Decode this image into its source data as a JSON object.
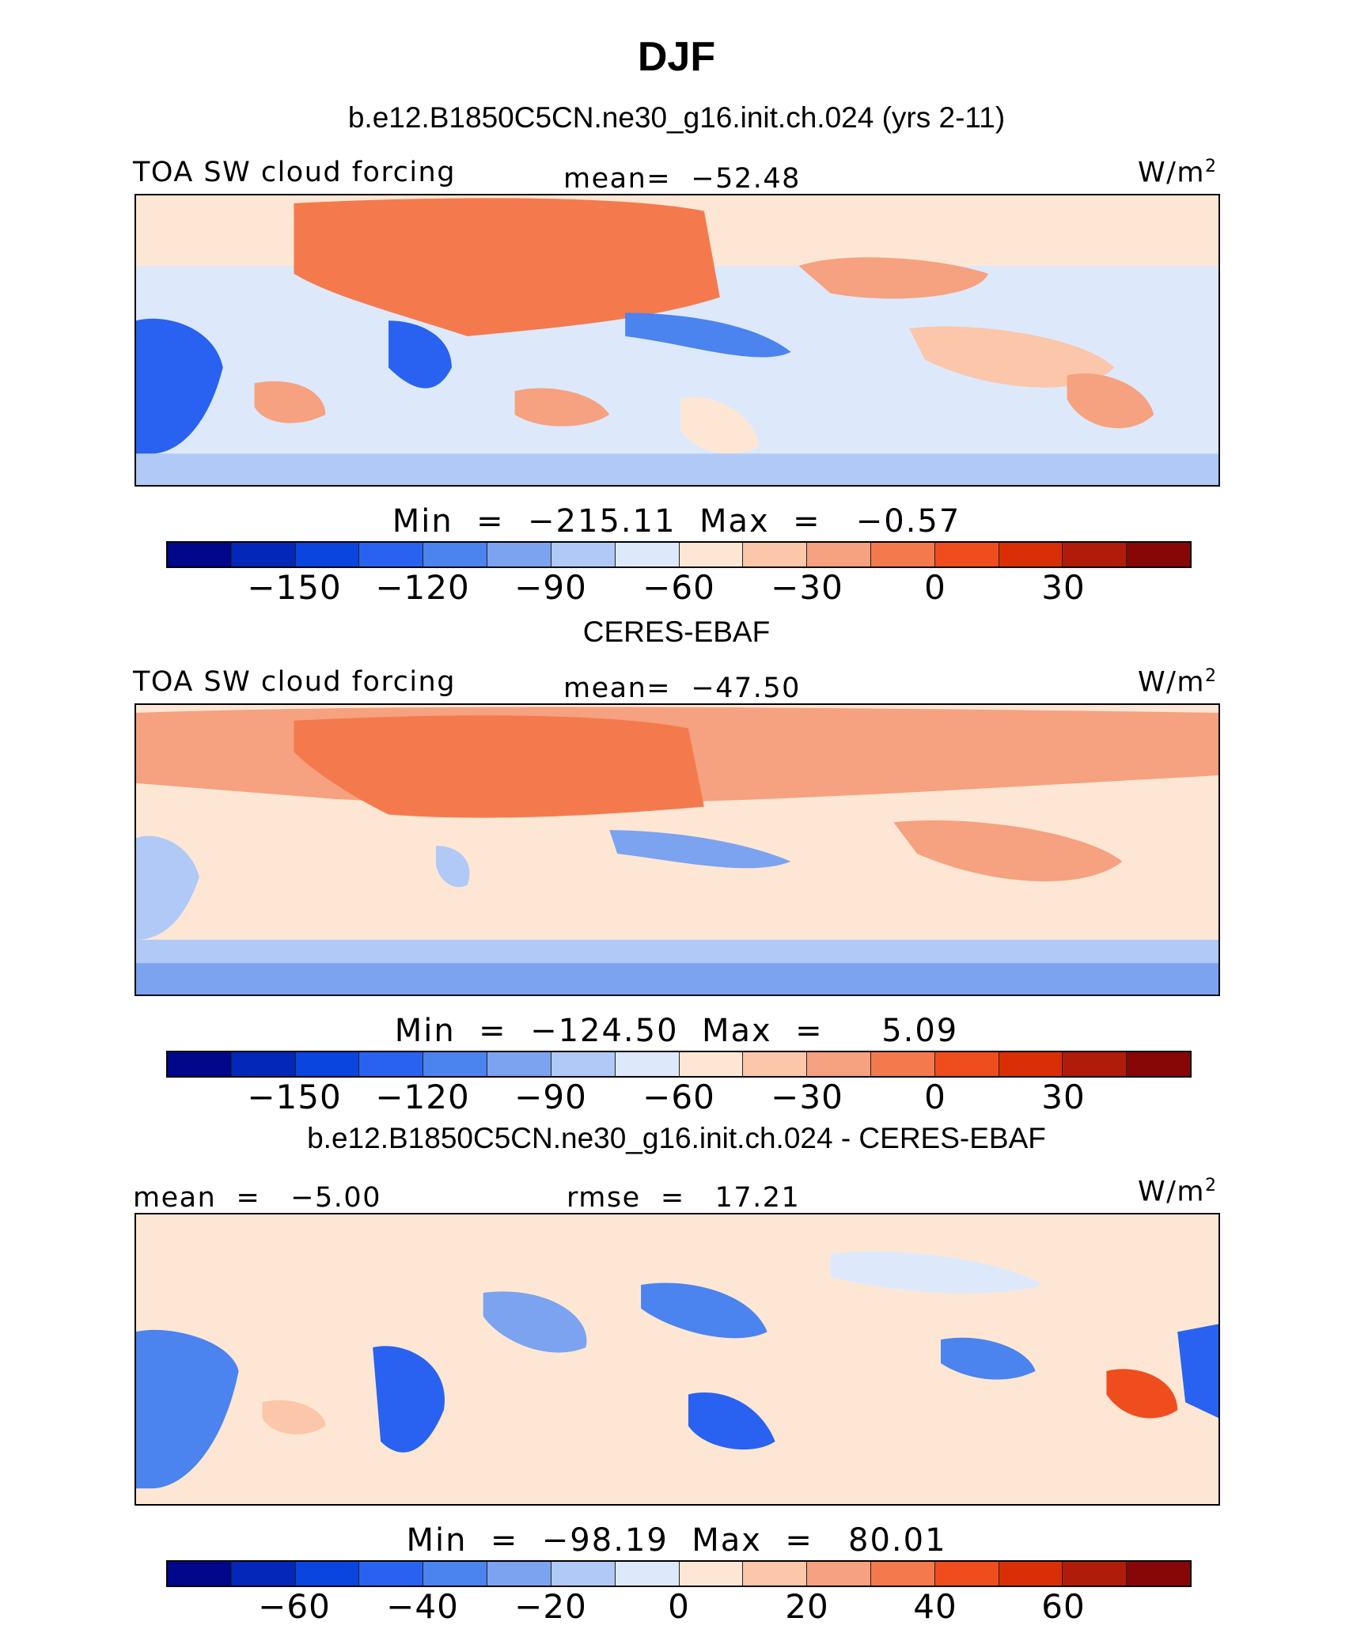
{
  "title": "DJF",
  "panels": [
    {
      "case_title": "b.e12.B1850C5CN.ne30_g16.init.ch.024 (yrs 2-11)",
      "left_label": "TOA SW cloud forcing",
      "center_label": "mean=  −52.48",
      "units": "W/m",
      "units_sup": "2",
      "stats": "Min  =  −215.11  Max  =   −0.57",
      "colorbar_ticks": [
        "−150",
        "−120",
        "−90",
        "−60",
        "−30",
        "0",
        "30"
      ]
    },
    {
      "case_title": "CERES-EBAF",
      "left_label": "TOA SW cloud forcing",
      "center_label": "mean=  −47.50",
      "units": "W/m",
      "units_sup": "2",
      "stats": "Min  =  −124.50  Max  =     5.09",
      "colorbar_ticks": [
        "−150",
        "−120",
        "−90",
        "−60",
        "−30",
        "0",
        "30"
      ]
    },
    {
      "case_title": "b.e12.B1850C5CN.ne30_g16.init.ch.024 - CERES-EBAF",
      "left_label": "mean  =   −5.00",
      "center_label": "rmse  =   17.21",
      "units": "W/m",
      "units_sup": "2",
      "stats": "Min  =  −98.19  Max  =   80.01",
      "colorbar_ticks": [
        "−60",
        "−40",
        "−20",
        "0",
        "20",
        "40",
        "60"
      ]
    }
  ],
  "colors": {
    "palette": [
      "#00078a",
      "#0327b8",
      "#0a45e0",
      "#2962f0",
      "#4b83ef",
      "#7ba3ef",
      "#b0c9f6",
      "#dde9fb",
      "#fde7d4",
      "#fbc6a9",
      "#f6a17f",
      "#f47a4e",
      "#ef4d1e",
      "#da2f06",
      "#b11b0a",
      "#870707"
    ]
  },
  "chart_data": [
    {
      "type": "heatmap",
      "title": "b.e12.B1850C5CN.ne30_g16.init.ch.024 (yrs 2-11)",
      "variable": "TOA SW cloud forcing",
      "units": "W/m2",
      "mean": -52.48,
      "min": -215.11,
      "max": -0.57,
      "colorbar_levels": [
        -165,
        -150,
        -135,
        -120,
        -105,
        -90,
        -75,
        -60,
        -45,
        -30,
        -15,
        0,
        15,
        30,
        45
      ],
      "colorbar_tick_labels": [
        -150,
        -120,
        -90,
        -60,
        -30,
        0,
        30
      ]
    },
    {
      "type": "heatmap",
      "title": "CERES-EBAF",
      "variable": "TOA SW cloud forcing",
      "units": "W/m2",
      "mean": -47.5,
      "min": -124.5,
      "max": 5.09,
      "colorbar_levels": [
        -165,
        -150,
        -135,
        -120,
        -105,
        -90,
        -75,
        -60,
        -45,
        -30,
        -15,
        0,
        15,
        30,
        45
      ],
      "colorbar_tick_labels": [
        -150,
        -120,
        -90,
        -60,
        -30,
        0,
        30
      ]
    },
    {
      "type": "heatmap",
      "title": "b.e12.B1850C5CN.ne30_g16.init.ch.024 - CERES-EBAF",
      "units": "W/m2",
      "mean": -5.0,
      "rmse": 17.21,
      "min": -98.19,
      "max": 80.01,
      "colorbar_levels": [
        -70,
        -60,
        -50,
        -40,
        -30,
        -20,
        -10,
        0,
        10,
        20,
        30,
        40,
        50,
        60,
        70
      ],
      "colorbar_tick_labels": [
        -60,
        -40,
        -20,
        0,
        20,
        40,
        60
      ]
    }
  ]
}
